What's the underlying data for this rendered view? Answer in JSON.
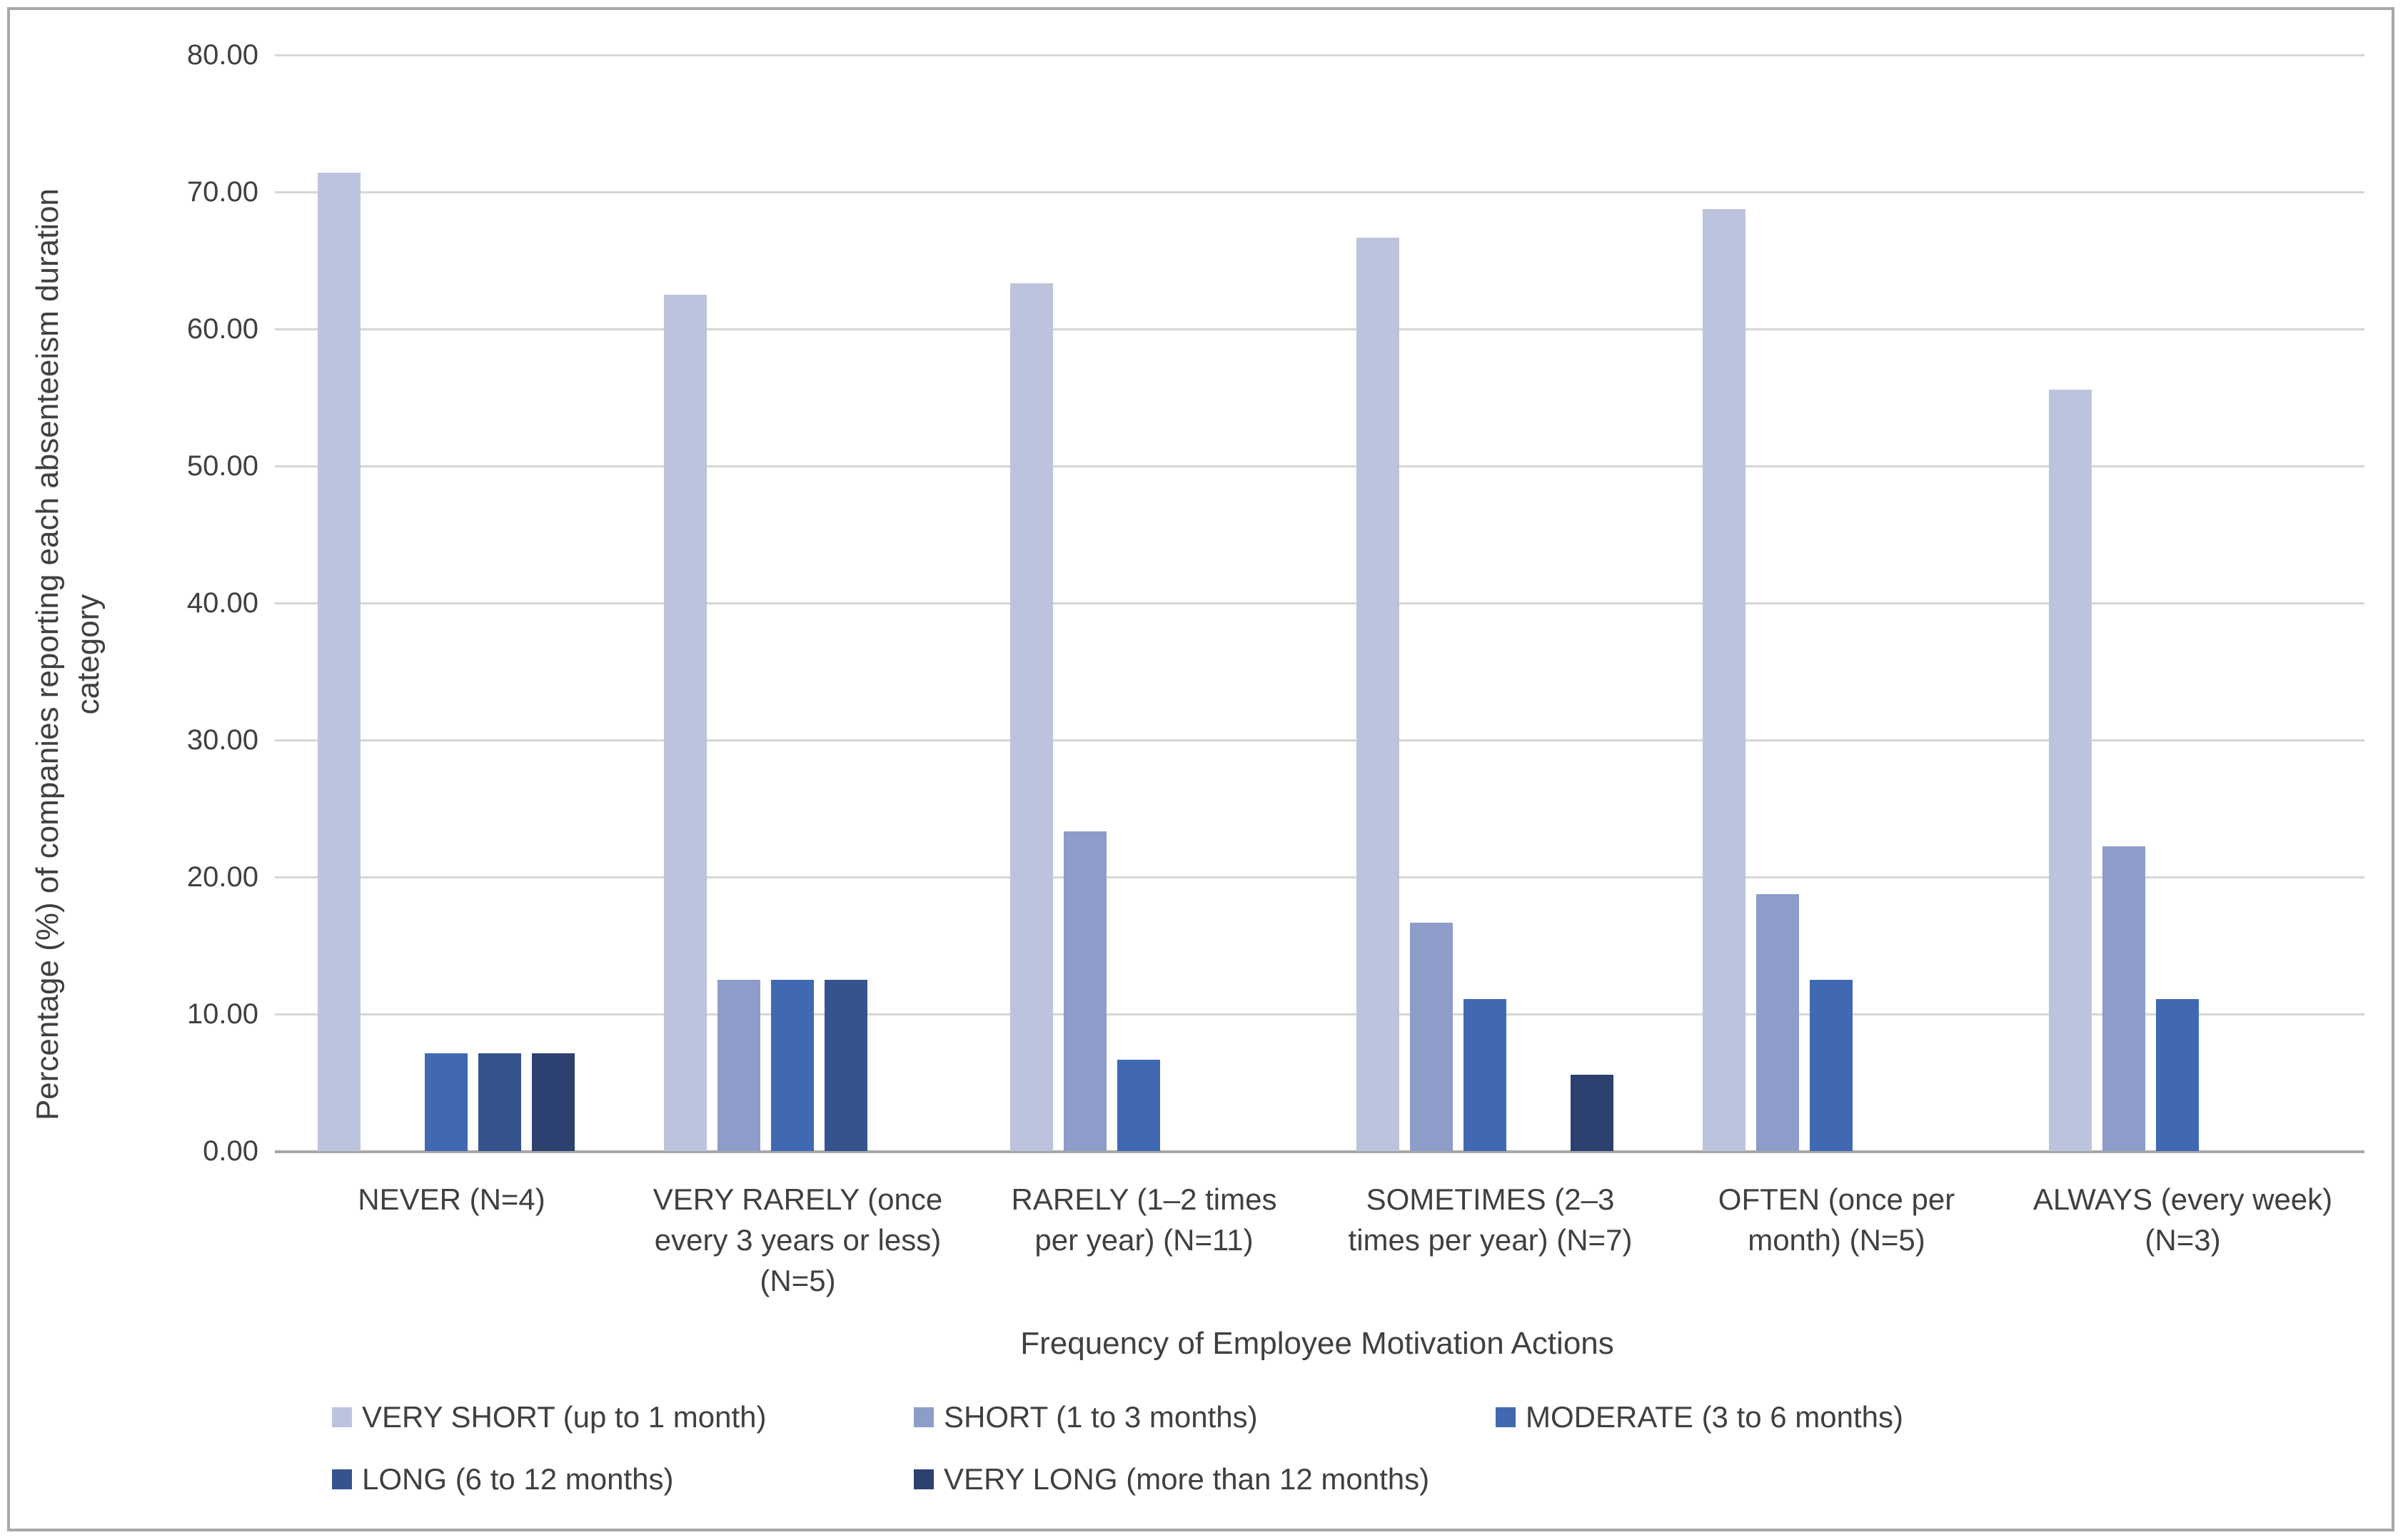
{
  "figure": {
    "background": "#ffffff",
    "border_color": "#a8a8a8",
    "text_color": "#404040",
    "gridline_color": "#d6d6d6",
    "axisline_color": "#a6a6a6"
  },
  "chart_data": {
    "type": "bar",
    "title": "",
    "xlabel": "Frequency of Employee Motivation Actions",
    "ylabel": "Percentage (%) of companies reporting each absenteeism duration category",
    "ylabel_wrapped": "Percentage (%) of companies reporting each absenteeism duration\ncategory",
    "ylim": [
      0,
      80
    ],
    "ytick_step": 10,
    "ytick_labels": [
      "80.00",
      "70.00",
      "60.00",
      "50.00",
      "40.00",
      "30.00",
      "20.00",
      "10.00",
      "0.00"
    ],
    "grid": true,
    "legend_position": "bottom",
    "categories": [
      "NEVER (N=4)",
      "VERY RARELY (once every 3 years or less) (N=5)",
      "RARELY (1–2 times per year) (N=11)",
      "SOMETIMES (2–3 times per year) (N=7)",
      "OFTEN (once per month) (N=5)",
      "ALWAYS (every week) (N=3)"
    ],
    "category_labels_wrapped": [
      "NEVER (N=4)",
      "VERY RARELY (once\nevery 3 years or less)\n(N=5)",
      "RARELY (1–2 times\nper year) (N=11)",
      "SOMETIMES (2–3\ntimes per year) (N=7)",
      "OFTEN (once per\nmonth) (N=5)",
      "ALWAYS (every week)\n(N=3)"
    ],
    "series": [
      {
        "name": "VERY SHORT (up to 1 month)",
        "color": "#bcc4dd",
        "values": [
          71.43,
          62.5,
          63.33,
          66.67,
          68.75,
          55.56
        ]
      },
      {
        "name": "SHORT (1 to 3 months)",
        "color": "#8d9cc8",
        "values": [
          null,
          12.5,
          23.33,
          16.67,
          18.75,
          22.22
        ]
      },
      {
        "name": "MODERATE (3 to 6 months)",
        "color": "#4169b2",
        "values": [
          7.14,
          12.5,
          6.67,
          11.11,
          12.5,
          11.11
        ]
      },
      {
        "name": "LONG (6 to 12 months)",
        "color": "#35548e",
        "values": [
          7.14,
          12.5,
          null,
          null,
          null,
          null
        ]
      },
      {
        "name": "VERY LONG (more than 12 months)",
        "color": "#2d4170",
        "values": [
          7.14,
          null,
          null,
          5.56,
          null,
          null
        ]
      }
    ]
  }
}
